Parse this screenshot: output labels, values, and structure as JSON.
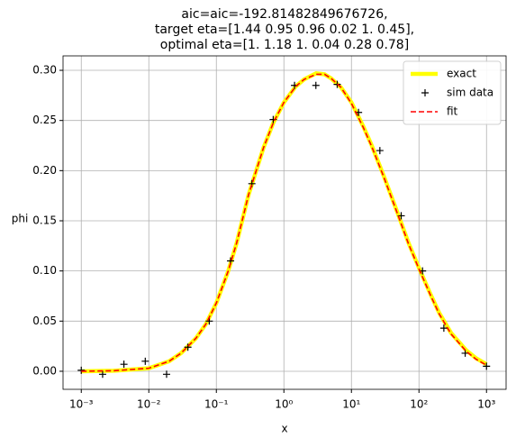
{
  "chart_data": {
    "type": "line",
    "title": [
      "aic=aic=-192.81482849676726,",
      "target eta=[1.44 0.95 0.96 0.02 1.   0.45],",
      "optimal eta=[1.   1.18 1.   0.04 0.28 0.78]"
    ],
    "x_label": "x",
    "y_label": "phi",
    "xscale": "log",
    "xlim": [
      0.000537,
      1950
    ],
    "ylim": [
      -0.018,
      0.3144
    ],
    "xticks": [
      {
        "value": 0.001,
        "label": "10⁻³"
      },
      {
        "value": 0.01,
        "label": "10⁻²"
      },
      {
        "value": 0.1,
        "label": "10⁻¹"
      },
      {
        "value": 1,
        "label": "10⁰"
      },
      {
        "value": 10,
        "label": "10¹"
      },
      {
        "value": 100,
        "label": "10²"
      },
      {
        "value": 1000,
        "label": "10³"
      }
    ],
    "yticks": [
      {
        "value": 0,
        "label": "0.00"
      },
      {
        "value": 0.05,
        "label": "0.05"
      },
      {
        "value": 0.1,
        "label": "0.10"
      },
      {
        "value": 0.15,
        "label": "0.15"
      },
      {
        "value": 0.2,
        "label": "0.20"
      },
      {
        "value": 0.25,
        "label": "0.25"
      },
      {
        "value": 0.3,
        "label": "0.30"
      }
    ],
    "grid": true,
    "legend": "upper right",
    "series": [
      {
        "name": "exact",
        "color": "#ffff00",
        "style": "solid",
        "x": [
          0.001,
          0.003,
          0.01,
          0.02,
          0.03,
          0.05,
          0.07,
          0.1,
          0.15,
          0.2,
          0.3,
          0.5,
          0.7,
          1,
          1.5,
          2,
          3,
          4,
          5,
          7,
          10,
          15,
          20,
          30,
          50,
          70,
          100,
          150,
          200,
          300,
          500,
          700,
          1000
        ],
        "values": [
          0.0,
          0.0005,
          0.003,
          0.01,
          0.018,
          0.033,
          0.047,
          0.068,
          0.1,
          0.128,
          0.176,
          0.223,
          0.248,
          0.268,
          0.284,
          0.291,
          0.297,
          0.296,
          0.292,
          0.283,
          0.268,
          0.244,
          0.225,
          0.195,
          0.155,
          0.128,
          0.103,
          0.076,
          0.058,
          0.038,
          0.021,
          0.013,
          0.007
        ]
      },
      {
        "name": "sim data",
        "color": "#000000",
        "style": "marker",
        "x": [
          0.001,
          0.00207,
          0.00428,
          0.00886,
          0.01833,
          0.0379,
          0.0785,
          0.1624,
          0.336,
          0.695,
          1.438,
          2.976,
          6.158,
          12.74,
          26.37,
          54.56,
          112.9,
          233.6,
          483.3,
          1000
        ],
        "values": [
          0.001,
          -0.003,
          0.007,
          0.01,
          -0.003,
          0.024,
          0.05,
          0.11,
          0.187,
          0.251,
          0.285,
          0.285,
          0.286,
          0.258,
          0.22,
          0.155,
          0.1,
          0.043,
          0.018,
          0.005
        ]
      },
      {
        "name": "fit",
        "color": "#ff0000",
        "style": "dashed",
        "x": [
          0.001,
          0.003,
          0.01,
          0.02,
          0.03,
          0.05,
          0.07,
          0.1,
          0.15,
          0.2,
          0.3,
          0.5,
          0.7,
          1,
          1.5,
          2,
          3,
          4,
          5,
          7,
          10,
          15,
          20,
          30,
          50,
          70,
          100,
          150,
          200,
          300,
          500,
          700,
          1000
        ],
        "values": [
          0.0,
          0.0005,
          0.003,
          0.01,
          0.018,
          0.033,
          0.047,
          0.068,
          0.1,
          0.128,
          0.176,
          0.223,
          0.248,
          0.268,
          0.284,
          0.291,
          0.296,
          0.296,
          0.292,
          0.283,
          0.267,
          0.243,
          0.224,
          0.194,
          0.154,
          0.127,
          0.102,
          0.075,
          0.057,
          0.037,
          0.02,
          0.012,
          0.006
        ]
      }
    ]
  }
}
